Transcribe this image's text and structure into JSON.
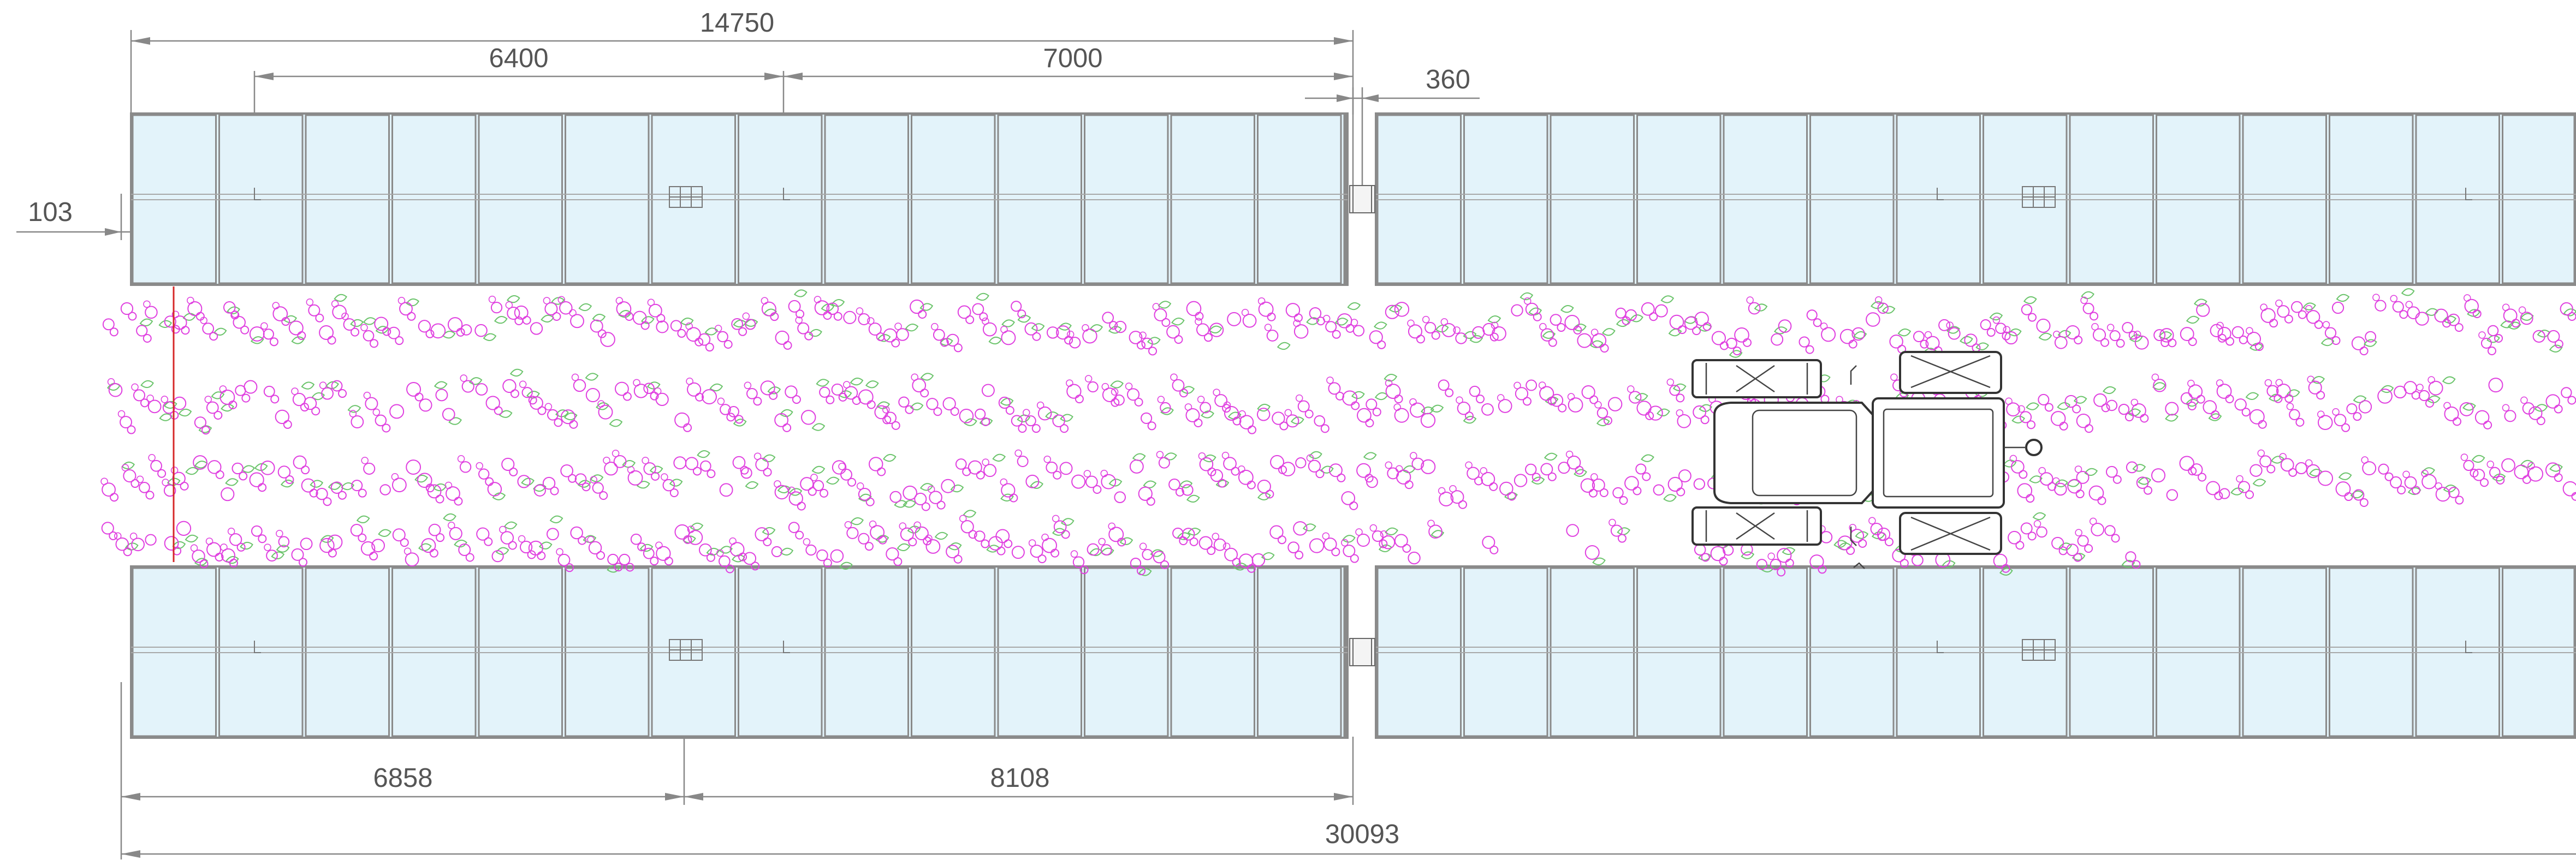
{
  "dimensions": {
    "top_total": "14750",
    "top_left": "6400",
    "top_right": "7000",
    "gap": "360",
    "edge_offset": "103",
    "bottom_left": "6858",
    "bottom_right": "8108",
    "bottom_total": "30093"
  },
  "colors": {
    "panel_fill": "#e3f3fa",
    "panel_stroke": "#8a8a8a",
    "dimension_line": "#888888",
    "dimension_text": "#555555",
    "flower": "#e040e0",
    "leaf": "#6cc46c",
    "red_marker": "#d62828",
    "tractor_outline": "#333333"
  },
  "elements": {
    "tractor": "tractor-icon",
    "crop_rows": 4,
    "panel_arrays": 4
  }
}
